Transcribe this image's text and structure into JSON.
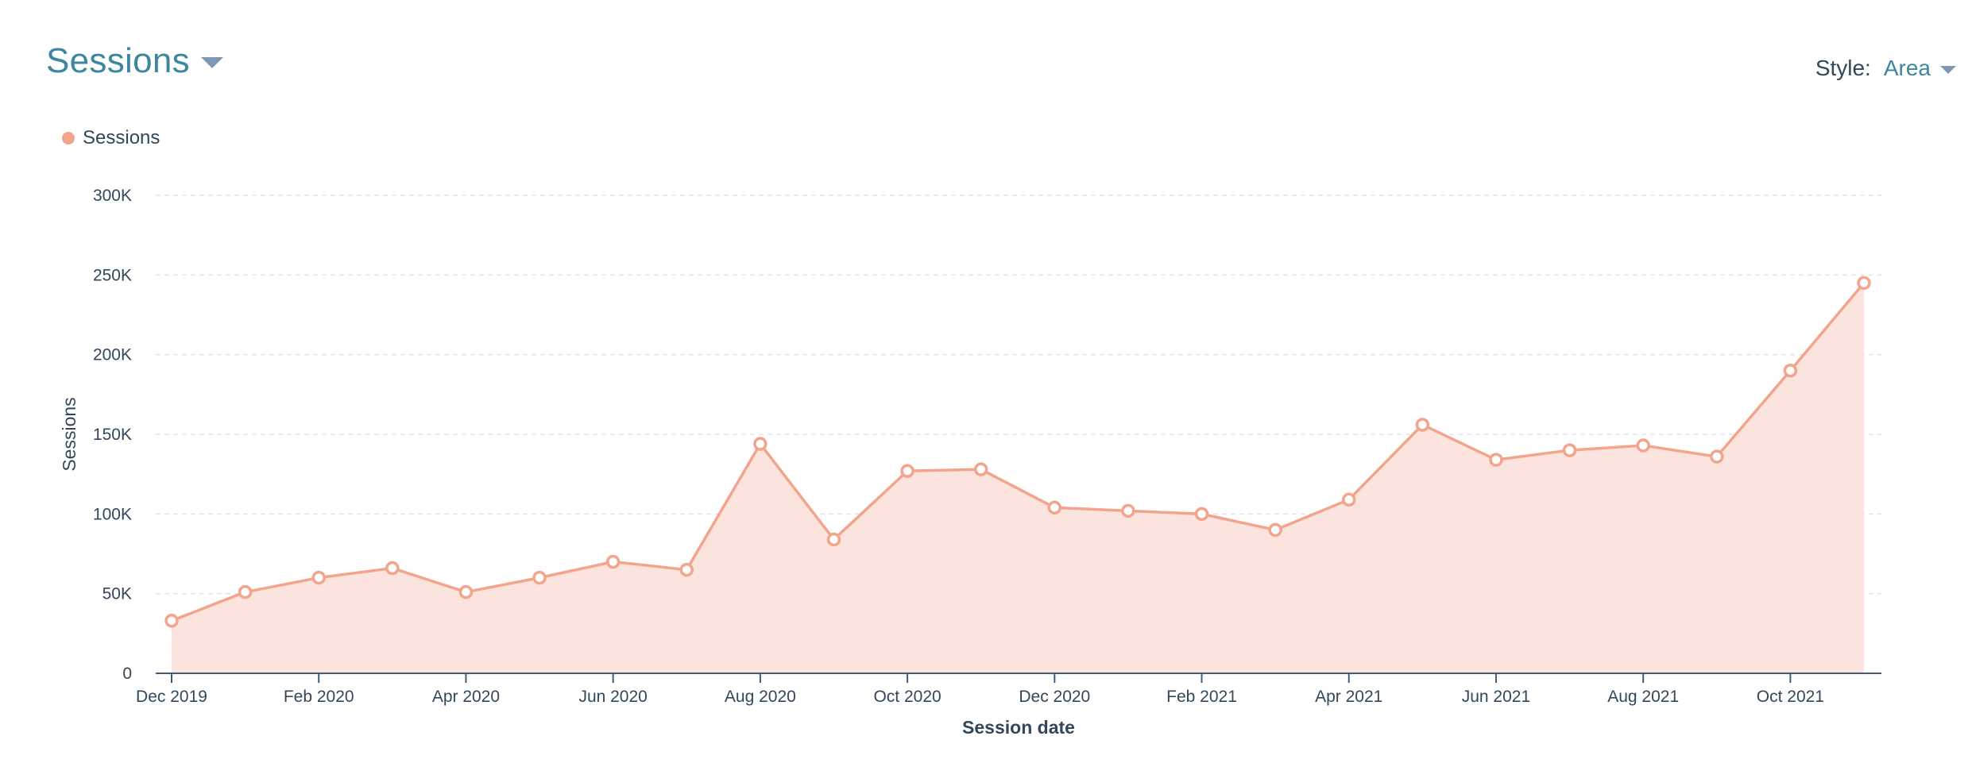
{
  "header": {
    "title": "Sessions"
  },
  "style_control": {
    "label": "Style:",
    "value": "Area"
  },
  "legend": {
    "label": "Sessions"
  },
  "colors": {
    "series": "#f2a48d",
    "fill": "#fce4de",
    "accent": "#3d86a0",
    "axis": "#425b76",
    "grid": "#dfe3eb"
  },
  "icons": {
    "title_caret": "chevron-down-icon",
    "style_caret": "chevron-down-icon"
  },
  "chart_data": {
    "type": "area",
    "title": "",
    "xlabel": "Session date",
    "ylabel": "Sessions",
    "ylim": [
      0,
      300000
    ],
    "yticks": [
      0,
      50000,
      100000,
      150000,
      200000,
      250000,
      300000
    ],
    "ytick_labels": [
      "0",
      "50K",
      "100K",
      "150K",
      "200K",
      "250K",
      "300K"
    ],
    "x_labels": [
      "Dec 2019",
      "Jan 2020",
      "Feb 2020",
      "Mar 2020",
      "Apr 2020",
      "May 2020",
      "Jun 2020",
      "Jul 2020",
      "Aug 2020",
      "Sep 2020",
      "Oct 2020",
      "Nov 2020",
      "Dec 2020",
      "Jan 2021",
      "Feb 2021",
      "Mar 2021",
      "Apr 2021",
      "May 2021",
      "Jun 2021",
      "Jul 2021",
      "Aug 2021",
      "Sep 2021",
      "Oct 2021",
      "Nov 2021"
    ],
    "shown_tick_labels": [
      "Dec 2019",
      "Feb 2020",
      "Apr 2020",
      "Jun 2020",
      "Aug 2020",
      "Oct 2020",
      "Dec 2020",
      "Feb 2021",
      "Apr 2021",
      "Jun 2021",
      "Aug 2021",
      "Oct 2021"
    ],
    "grid": true,
    "legend_position": "top-left",
    "series": [
      {
        "name": "Sessions",
        "values": [
          33000,
          51000,
          60000,
          66000,
          51000,
          60000,
          70000,
          65000,
          144000,
          84000,
          127000,
          128000,
          104000,
          102000,
          100000,
          90000,
          109000,
          156000,
          134000,
          140000,
          143000,
          136000,
          190000,
          245000
        ]
      }
    ]
  }
}
